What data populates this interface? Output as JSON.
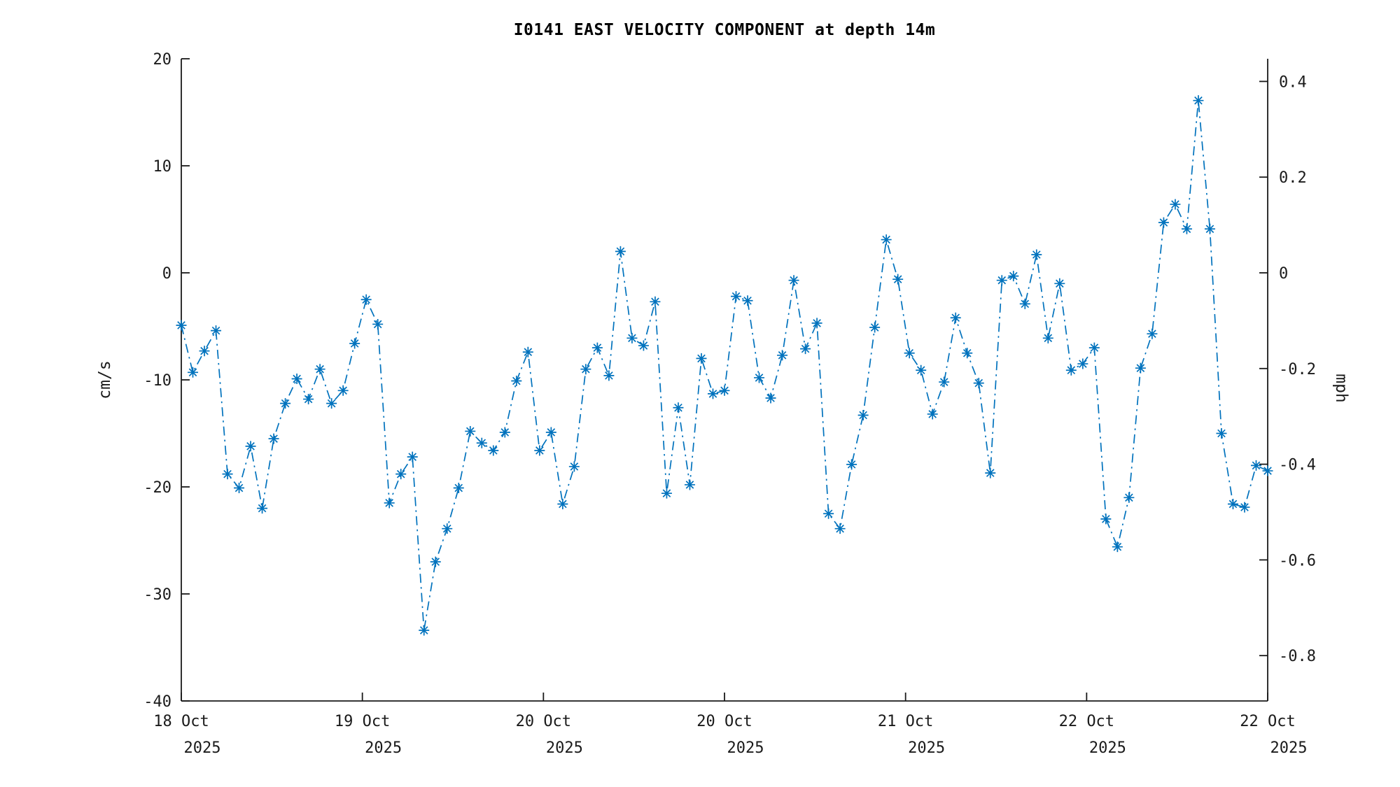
{
  "chart_data": {
    "type": "line",
    "title": "I0141 EAST VELOCITY COMPONENT at depth 14m",
    "line_color": "#0072BD",
    "line_style": "dash-dot",
    "marker": "asterisk",
    "grid": false,
    "legend": "none",
    "yaxis_left": {
      "label": "cm/s",
      "range": [
        -40,
        20
      ],
      "ticks": [
        20,
        10,
        0,
        -10,
        -20,
        -30,
        -40
      ]
    },
    "yaxis_right": {
      "label": "mph",
      "ticks": [
        0.4,
        0.2,
        0,
        -0.2,
        -0.4,
        -0.6,
        -0.8
      ],
      "mph_per_cms": 0.0223694
    },
    "xaxis": {
      "ticks": [
        {
          "day": "18 Oct",
          "year": "2025"
        },
        {
          "day": "19 Oct",
          "year": "2025"
        },
        {
          "day": "20 Oct",
          "year": "2025"
        },
        {
          "day": "20 Oct",
          "year": "2025"
        },
        {
          "day": "21 Oct",
          "year": "2025"
        },
        {
          "day": "22 Oct",
          "year": "2025"
        },
        {
          "day": "22 Oct",
          "year": "2025"
        }
      ],
      "evenly_spaced_points": true
    },
    "series": [
      {
        "name": "east velocity (cm/s)",
        "values": [
          -4.9,
          -9.3,
          -7.3,
          -5.4,
          -18.8,
          -20.1,
          -16.2,
          -22.0,
          -15.5,
          -12.2,
          -9.9,
          -11.8,
          -9.0,
          -12.2,
          -11.0,
          -6.6,
          -2.5,
          -4.8,
          -21.5,
          -18.8,
          -17.2,
          -33.4,
          -27.0,
          -23.9,
          -20.1,
          -14.8,
          -15.9,
          -16.6,
          -14.9,
          -10.1,
          -7.4,
          -16.6,
          -14.9,
          -21.6,
          -18.1,
          -9.0,
          -7.0,
          -9.6,
          2.0,
          -6.1,
          -6.8,
          -2.7,
          -20.6,
          -12.6,
          -19.8,
          -8.0,
          -11.3,
          -11.0,
          -2.2,
          -2.6,
          -9.8,
          -11.7,
          -7.7,
          -0.7,
          -7.1,
          -4.7,
          -22.5,
          -23.9,
          -17.9,
          -13.3,
          -5.1,
          3.1,
          -0.6,
          -7.5,
          -9.1,
          -13.2,
          -10.2,
          -4.2,
          -7.5,
          -10.3,
          -18.7,
          -0.7,
          -0.3,
          -2.9,
          1.7,
          -6.1,
          -1.0,
          -9.1,
          -8.5,
          -7.0,
          -23.0,
          -25.6,
          -21.0,
          -8.9,
          -5.7,
          4.7,
          6.4,
          4.1,
          16.1,
          4.1,
          -15.0,
          -21.6,
          -21.9,
          -18.0,
          -18.5
        ]
      }
    ]
  }
}
